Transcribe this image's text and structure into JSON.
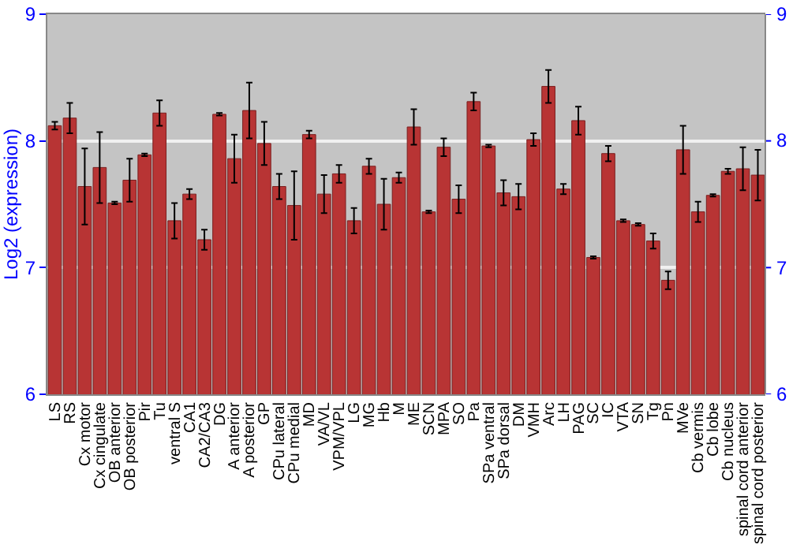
{
  "chart_data": {
    "type": "bar",
    "ylabel": "Log2 (expression)",
    "categories": [
      "LS",
      "RS",
      "Cx motor",
      "Cx cingulate",
      "OB anterior",
      "OB posterior",
      "Pir",
      "Tu",
      "ventral S",
      "CA1",
      "CA2/CA3",
      "DG",
      "A anterior",
      "A posterior",
      "GP",
      "CPu lateral",
      "CPu medial",
      "MD",
      "VA/VL",
      "VPM/VPL",
      "LG",
      "MG",
      "Hb",
      "M",
      "ME",
      "SCN",
      "MPA",
      "SO",
      "Pa",
      "SPa ventral",
      "SPa dorsal",
      "DM",
      "VMH",
      "Arc",
      "LH",
      "PAG",
      "SC",
      "IC",
      "VTA",
      "SN",
      "Tg",
      "Pn",
      "MVe",
      "Cb vermis",
      "Cb lobe",
      "Cb nucleus",
      "spinal cord anterior",
      "spinal cord posterior"
    ],
    "values": [
      8.12,
      8.18,
      7.64,
      7.79,
      7.51,
      7.69,
      7.89,
      8.22,
      7.37,
      7.58,
      7.22,
      8.21,
      7.86,
      8.24,
      7.98,
      7.64,
      7.49,
      8.05,
      7.58,
      7.74,
      7.37,
      7.8,
      7.5,
      7.71,
      8.11,
      7.44,
      7.95,
      7.54,
      8.31,
      7.96,
      7.59,
      7.56,
      8.01,
      8.43,
      7.62,
      8.16,
      7.08,
      7.9,
      7.37,
      7.34,
      7.21,
      6.9,
      7.93,
      7.44,
      7.57,
      7.76,
      7.78,
      7.73
    ],
    "errors": [
      0.03,
      0.12,
      0.3,
      0.28,
      0.01,
      0.17,
      0.01,
      0.1,
      0.14,
      0.04,
      0.08,
      0.01,
      0.19,
      0.22,
      0.17,
      0.1,
      0.27,
      0.03,
      0.15,
      0.07,
      0.1,
      0.06,
      0.2,
      0.04,
      0.14,
      0.01,
      0.07,
      0.11,
      0.07,
      0.01,
      0.1,
      0.1,
      0.05,
      0.13,
      0.04,
      0.11,
      0.01,
      0.06,
      0.01,
      0.01,
      0.06,
      0.07,
      0.19,
      0.08,
      0.01,
      0.02,
      0.17,
      0.2
    ],
    "color": "#b83434",
    "ylim": [
      6,
      9
    ],
    "yticks": [
      6,
      7,
      8,
      9
    ],
    "y2lim": [
      6,
      9
    ],
    "y2ticks": [
      6,
      7,
      8,
      9
    ],
    "grid": "y"
  }
}
